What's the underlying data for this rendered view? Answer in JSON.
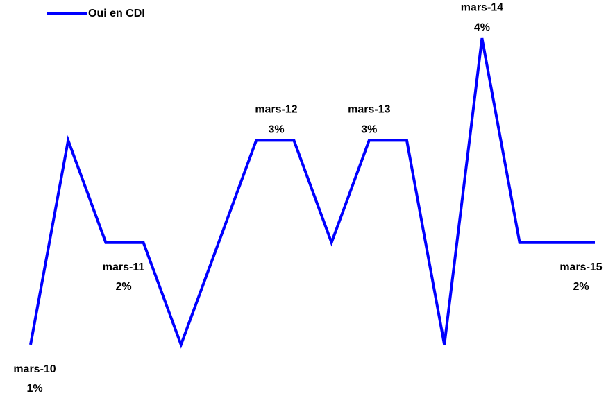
{
  "chart_data": {
    "type": "line",
    "categories": [
      "mars-10",
      null,
      null,
      "mars-11",
      null,
      null,
      "mars-12",
      null,
      null,
      "mars-13",
      null,
      null,
      "mars-14",
      null,
      null,
      "mars-15"
    ],
    "series": [
      {
        "name": "Oui en CDI",
        "color": "#0000ff",
        "values": [
          1,
          3,
          2,
          2,
          1,
          2,
          3,
          3,
          2,
          3,
          3,
          1,
          4,
          2,
          2,
          2
        ],
        "value_labels": [
          "1%",
          null,
          null,
          "2%",
          null,
          null,
          "3%",
          null,
          null,
          "3%",
          null,
          null,
          "4%",
          null,
          null,
          "2%"
        ]
      }
    ],
    "legend": "top-left"
  }
}
